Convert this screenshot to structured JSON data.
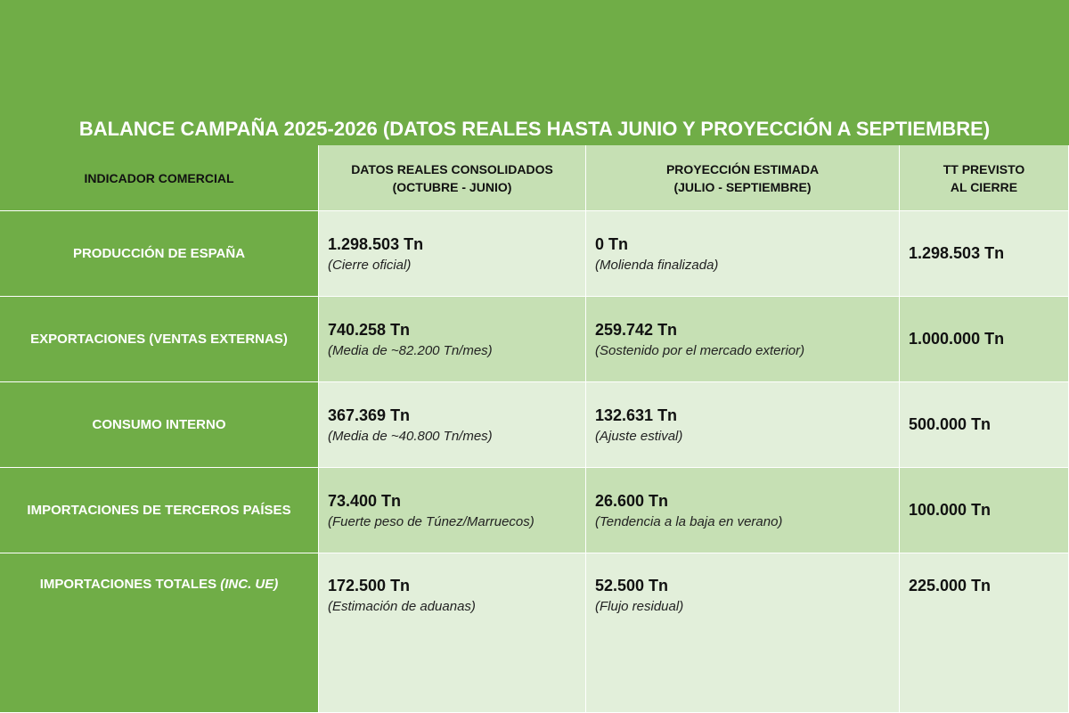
{
  "title": "BALANCE CAMPAÑA 2025-2026 (DATOS REALES HASTA JUNIO Y PROYECCIÓN A SEPTIEMBRE)",
  "headers": [
    {
      "lines": [
        "INDICADOR COMERCIAL"
      ]
    },
    {
      "lines": [
        "DATOS REALES CONSOLIDADOS",
        "(OCTUBRE - JUNIO)"
      ]
    },
    {
      "lines": [
        "PROYECCIÓN ESTIMADA",
        "(JULIO - SEPTIEMBRE)"
      ]
    },
    {
      "lines": [
        "TT PREVISTO",
        "AL CIERRE"
      ]
    }
  ],
  "rows": [
    {
      "label": "PRODUCCIÓN DE ESPAÑA",
      "cells": [
        {
          "value": "1.298.503 Tn",
          "note": "(Cierre oficial)"
        },
        {
          "value": "0 Tn",
          "note": "(Molienda finalizada)"
        },
        {
          "value": "1.298.503 Tn"
        }
      ]
    },
    {
      "label": "EXPORTACIONES (VENTAS EXTERNAS)",
      "cells": [
        {
          "value": "740.258 Tn",
          "note": "(Media de ~82.200 Tn/mes)"
        },
        {
          "value": "259.742 Tn",
          "note": "(Sostenido por el mercado exterior)"
        },
        {
          "value": "1.000.000 Tn"
        }
      ]
    },
    {
      "label": "CONSUMO INTERNO",
      "cells": [
        {
          "value": "367.369 Tn",
          "note": "(Media de ~40.800 Tn/mes)"
        },
        {
          "value": "132.631 Tn",
          "note": "(Ajuste estival)"
        },
        {
          "value": "500.000 Tn"
        }
      ]
    },
    {
      "label": "IMPORTACIONES DE TERCEROS PAÍSES",
      "cells": [
        {
          "value": "73.400 Tn",
          "note": "(Fuerte peso de Túnez/Marruecos)"
        },
        {
          "value": "26.600 Tn",
          "note": "(Tendencia a la baja en verano)"
        },
        {
          "value": "100.000 Tn"
        }
      ]
    },
    {
      "label": "IMPORTACIONES TOTALES",
      "label_emphasis": "(INC. UE)",
      "cells": [
        {
          "value": "172.500 Tn",
          "note": "(Estimación de aduanas)"
        },
        {
          "value": "52.500 Tn",
          "note": "(Flujo residual)"
        },
        {
          "value": "225.000 Tn"
        }
      ]
    }
  ]
}
